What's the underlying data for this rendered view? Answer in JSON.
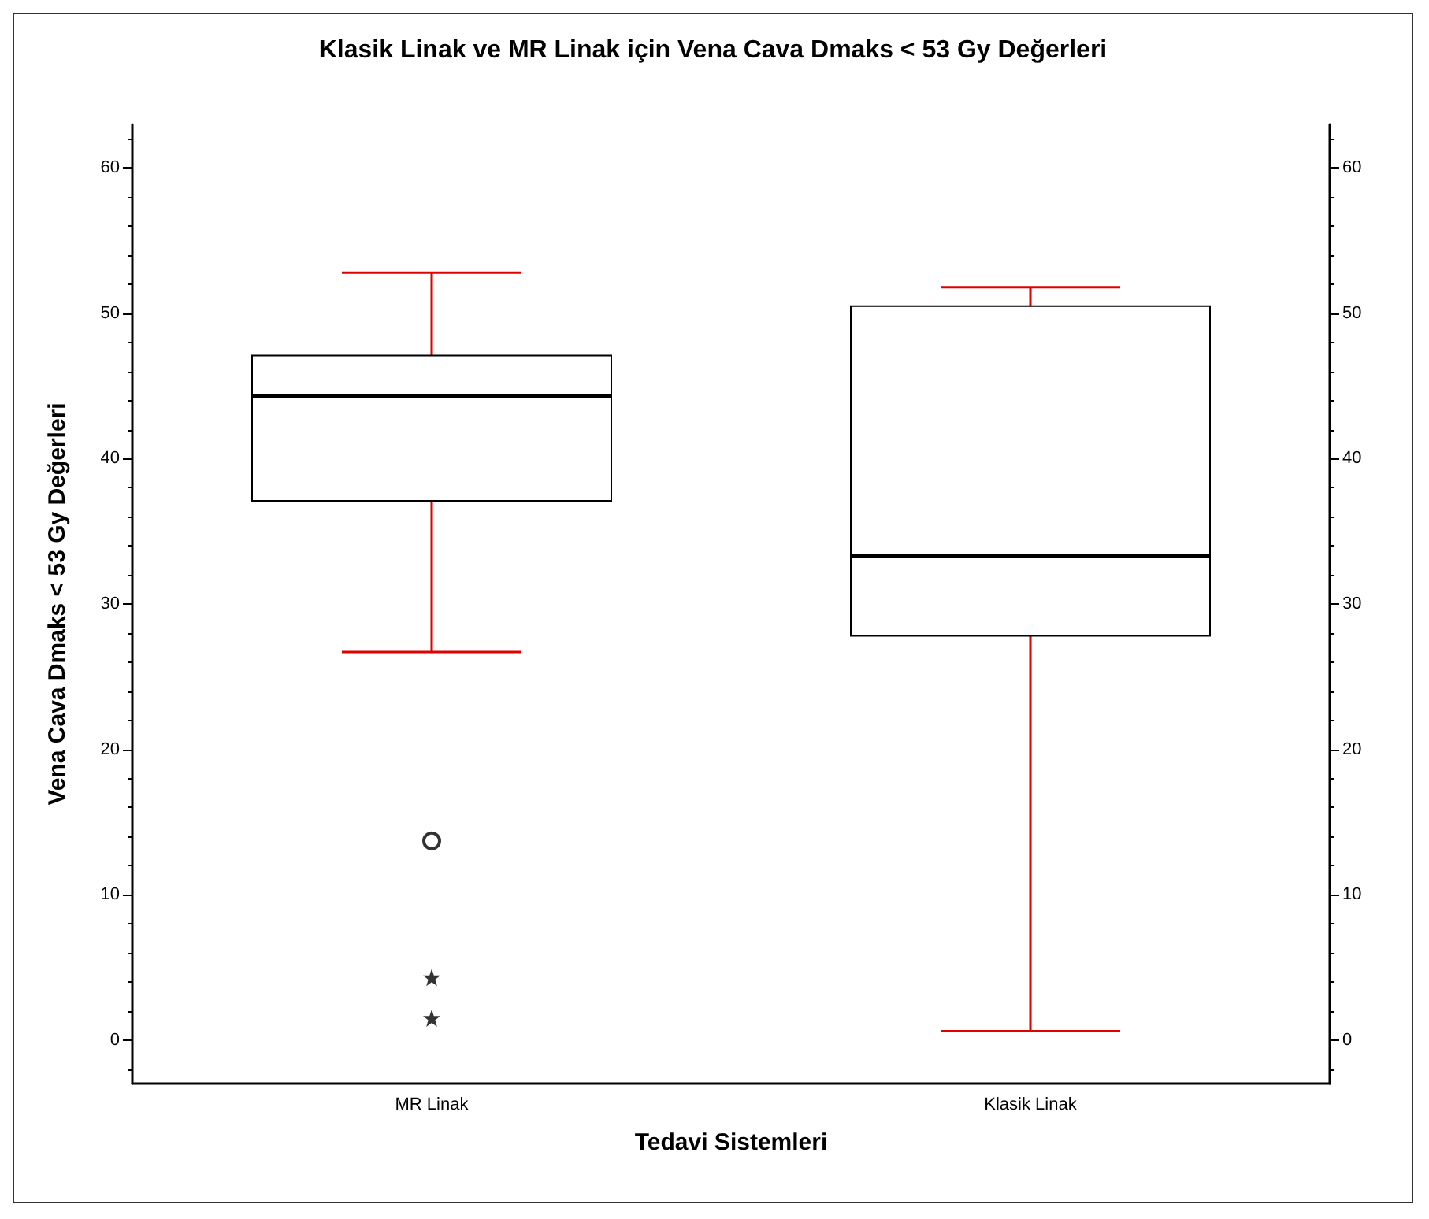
{
  "chart_data": {
    "type": "box",
    "title": "Klasik Linak ve MR Linak için Vena Cava Dmaks < 53 Gy Değerleri",
    "xlabel": "Tedavi Sistemleri",
    "ylabel": "Vena Cava Dmaks < 53 Gy Değerleri",
    "categories": [
      "MR Linak",
      "Klasik Linak"
    ],
    "series": [
      {
        "color": "#ffffff",
        "boxes": [
          {
            "low": 26.7,
            "q1": 37.1,
            "median": 44.3,
            "q3": 47.1,
            "high": 52.8,
            "outliers": [
              13.7
            ]
          },
          {
            "low": 0.6,
            "q1": 27.8,
            "median": 33.3,
            "q3": 50.5,
            "high": 51.8
          }
        ]
      },
      {
        "type": "scatter",
        "marker": "star",
        "color": "#000000",
        "x": [
          "MR Linak",
          "MR Linak"
        ],
        "values": [
          4.3,
          1.5
        ]
      }
    ],
    "marker": "circle",
    "ylim": [
      -3,
      63
    ],
    "yticks": [
      0,
      10,
      20,
      30,
      40,
      50,
      60
    ],
    "y2lim": [
      -3,
      63
    ],
    "y2ticks": [
      0,
      10,
      20,
      30,
      40,
      50,
      60
    ],
    "grid": false
  }
}
